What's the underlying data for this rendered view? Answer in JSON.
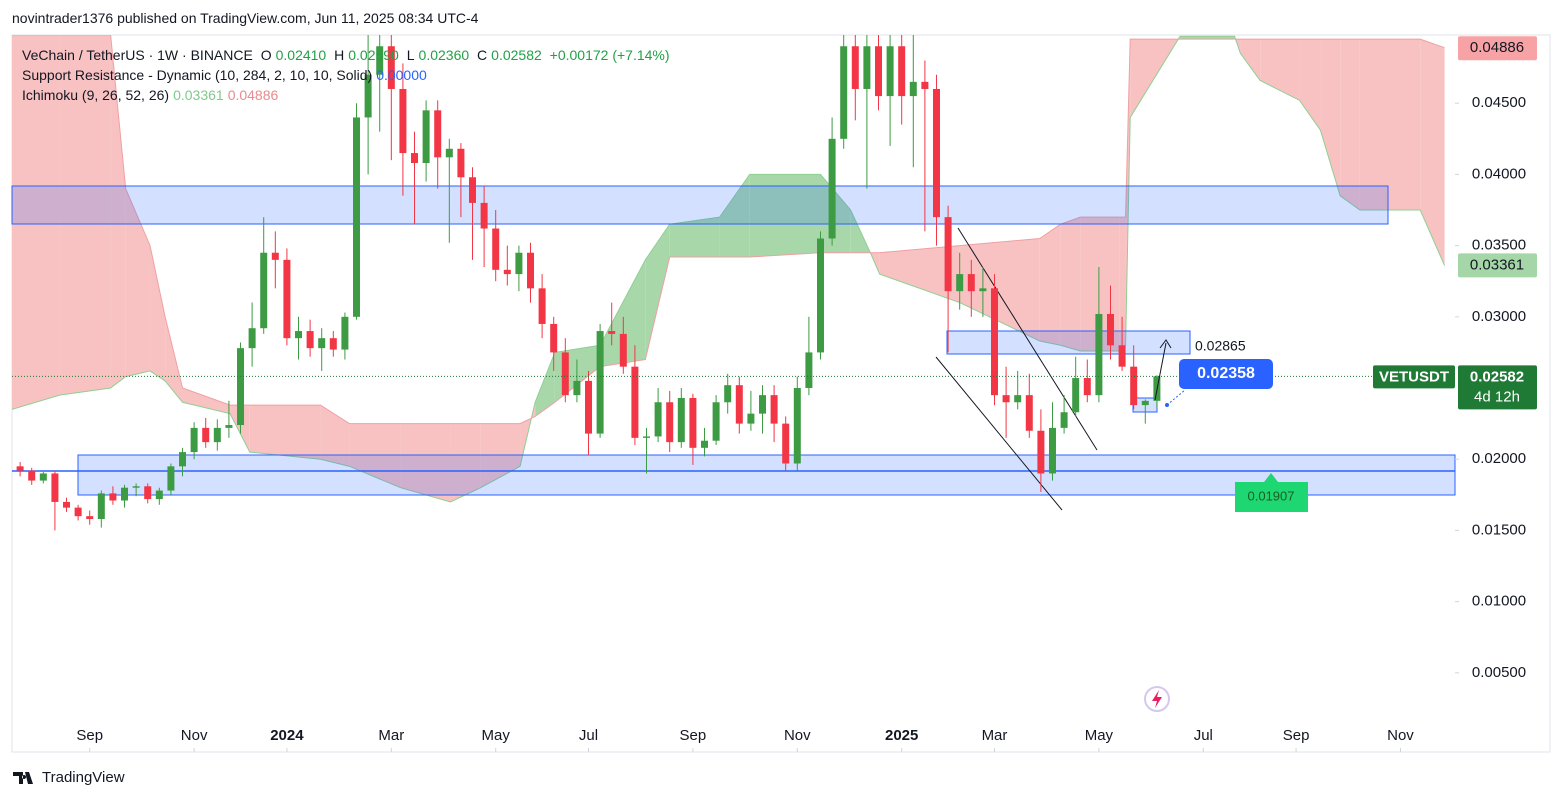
{
  "header": "novintrader1376 published on TradingView.com, Jun 11, 2025 08:34 UTC-4",
  "footer": "TradingView",
  "chart_data": {
    "type": "candlestick",
    "legend": {
      "symbol": "VeChain / TetherUS · 1W · BINANCE",
      "open_label": "O",
      "open": "0.02410",
      "high_label": "H",
      "high": "0.02590",
      "low_label": "L",
      "low": "0.02360",
      "close_label": "C",
      "close": "0.02582",
      "change": "+0.00172 (+7.14%)",
      "indicator_1": "Support Resistance - Dynamic (10, 284, 2, 10, 10, Solid)",
      "indicator_1_value": "0.00000",
      "indicator_2": "Ichimoku (9, 26, 52, 26)",
      "indicator_2_span_a": "0.03361",
      "indicator_2_span_b": "0.04886"
    },
    "up_color": "#3d9b43",
    "down_color": "#f23645",
    "open": [
      0.0195,
      0.0192,
      0.0185,
      0.019,
      0.017,
      0.0166,
      0.016,
      0.0158,
      0.0176,
      0.0171,
      0.018,
      0.0181,
      0.0172,
      0.0178,
      0.0195,
      0.0205,
      0.0222,
      0.0212,
      0.0222,
      0.0224,
      0.0278,
      0.0292,
      0.0345,
      0.034,
      0.0285,
      0.029,
      0.0278,
      0.0285,
      0.0277,
      0.03,
      0.044,
      0.047,
      0.049,
      0.046,
      0.0415,
      0.0408,
      0.0445,
      0.0412,
      0.0418,
      0.0398,
      0.038,
      0.0362,
      0.0333,
      0.033,
      0.0345,
      0.032,
      0.0295,
      0.0275,
      0.0245,
      0.0255,
      0.0218,
      0.029,
      0.0288,
      0.0265,
      0.0215,
      0.0216,
      0.024,
      0.0212,
      0.0243,
      0.0208,
      0.0213,
      0.024,
      0.0252,
      0.0225,
      0.0232,
      0.0245,
      0.0225,
      0.0197,
      0.025,
      0.0275,
      0.0355,
      0.0425,
      0.049,
      0.046,
      0.049,
      0.0455,
      0.049,
      0.0455,
      0.0465,
      0.046,
      0.037,
      0.0318,
      0.033,
      0.0318,
      0.032,
      0.0245,
      0.024,
      0.0245,
      0.022,
      0.019,
      0.0222,
      0.0233,
      0.0257,
      0.0245,
      0.0302,
      0.028,
      0.0265,
      0.0238,
      0.0241
    ],
    "high": [
      0.0198,
      0.0194,
      0.0191,
      0.0192,
      0.0173,
      0.0168,
      0.0164,
      0.0178,
      0.0181,
      0.0182,
      0.0183,
      0.0183,
      0.018,
      0.0197,
      0.0208,
      0.0226,
      0.0229,
      0.0228,
      0.0241,
      0.0282,
      0.031,
      0.037,
      0.036,
      0.0348,
      0.03,
      0.0298,
      0.0292,
      0.029,
      0.0303,
      0.045,
      0.0498,
      0.0498,
      0.0498,
      0.0478,
      0.043,
      0.0452,
      0.0452,
      0.0425,
      0.0422,
      0.0405,
      0.0392,
      0.0375,
      0.035,
      0.035,
      0.0352,
      0.033,
      0.03,
      0.0285,
      0.027,
      0.0262,
      0.0295,
      0.031,
      0.03,
      0.028,
      0.0222,
      0.025,
      0.0248,
      0.025,
      0.0246,
      0.0222,
      0.0245,
      0.026,
      0.0258,
      0.0248,
      0.0252,
      0.0252,
      0.023,
      0.0258,
      0.03,
      0.036,
      0.044,
      0.0498,
      0.0498,
      0.0498,
      0.0498,
      0.0498,
      0.0498,
      0.0498,
      0.048,
      0.047,
      0.0378,
      0.0345,
      0.034,
      0.0335,
      0.033,
      0.0265,
      0.0262,
      0.026,
      0.0235,
      0.024,
      0.0245,
      0.0272,
      0.027,
      0.0335,
      0.0322,
      0.03,
      0.028,
      0.0242,
      0.0259
    ],
    "low": [
      0.0188,
      0.0182,
      0.0183,
      0.015,
      0.0163,
      0.0157,
      0.0154,
      0.0152,
      0.0168,
      0.0166,
      0.0174,
      0.0169,
      0.0168,
      0.0175,
      0.0188,
      0.02,
      0.0208,
      0.0206,
      0.0215,
      0.0218,
      0.0265,
      0.0288,
      0.032,
      0.028,
      0.027,
      0.0272,
      0.0262,
      0.0272,
      0.027,
      0.0298,
      0.04,
      0.043,
      0.041,
      0.0385,
      0.0365,
      0.0395,
      0.039,
      0.0352,
      0.037,
      0.034,
      0.0335,
      0.0325,
      0.0322,
      0.0318,
      0.031,
      0.0285,
      0.0262,
      0.024,
      0.024,
      0.0203,
      0.0215,
      0.028,
      0.026,
      0.021,
      0.019,
      0.0212,
      0.0205,
      0.0208,
      0.0196,
      0.0202,
      0.021,
      0.0232,
      0.0218,
      0.022,
      0.0218,
      0.0212,
      0.0192,
      0.0192,
      0.0245,
      0.027,
      0.035,
      0.0418,
      0.0438,
      0.039,
      0.0445,
      0.042,
      0.0435,
      0.0405,
      0.036,
      0.035,
      0.0275,
      0.0305,
      0.03,
      0.03,
      0.0238,
      0.0215,
      0.0235,
      0.0215,
      0.0177,
      0.0185,
      0.0218,
      0.023,
      0.024,
      0.024,
      0.027,
      0.0262,
      0.0235,
      0.0225,
      0.0236
    ],
    "close": [
      0.0192,
      0.0185,
      0.019,
      0.017,
      0.0166,
      0.016,
      0.0158,
      0.0176,
      0.0171,
      0.018,
      0.0181,
      0.0172,
      0.0178,
      0.0195,
      0.0205,
      0.0222,
      0.0212,
      0.0222,
      0.0224,
      0.0278,
      0.0292,
      0.0345,
      0.034,
      0.0285,
      0.029,
      0.0278,
      0.0285,
      0.0277,
      0.03,
      0.044,
      0.047,
      0.049,
      0.046,
      0.0415,
      0.0408,
      0.0445,
      0.0412,
      0.0418,
      0.0398,
      0.038,
      0.0362,
      0.0333,
      0.033,
      0.0345,
      0.032,
      0.0295,
      0.0275,
      0.0245,
      0.0255,
      0.0218,
      0.029,
      0.0288,
      0.0265,
      0.0215,
      0.0216,
      0.024,
      0.0212,
      0.0243,
      0.0208,
      0.0213,
      0.024,
      0.0252,
      0.0225,
      0.0232,
      0.0245,
      0.0225,
      0.0197,
      0.025,
      0.0275,
      0.0355,
      0.0425,
      0.049,
      0.046,
      0.049,
      0.0455,
      0.049,
      0.0455,
      0.0465,
      0.046,
      0.037,
      0.0318,
      0.033,
      0.0318,
      0.032,
      0.0245,
      0.024,
      0.0245,
      0.022,
      0.019,
      0.0222,
      0.0233,
      0.0257,
      0.0245,
      0.0302,
      0.028,
      0.0265,
      0.0238,
      0.0241,
      0.02582
    ],
    "ichimoku": {
      "up_color": "#a8d8aa",
      "down_color": "#f8c2c2",
      "span_a_color": "#8fcf93",
      "span_b_color": "#efa0a4",
      "x": [
        -0.7,
        3.4,
        7.8,
        9.1,
        11.2,
        12.5,
        14.0,
        18.1,
        19.8,
        25.9,
        28.4,
        32.8,
        37.1,
        39.7,
        43.1,
        44.4,
        46.1,
        50.0,
        53.9,
        56.0,
        60.3,
        62.9,
        69.0,
        71.6,
        73.3,
        74.1,
        81.0,
        87.9,
        89.7,
        91.4,
        94.8,
        95.3,
        95.7,
        100.0,
        104.7,
        105.2,
        106.9,
        110.3,
        112.1,
        113.8,
        115.5,
        120.7,
        122.8
      ],
      "span_a": [
        0.0235,
        0.0245,
        0.025,
        0.0258,
        0.0262,
        0.0255,
        0.024,
        0.0232,
        0.0205,
        0.02,
        0.0195,
        0.018,
        0.017,
        0.018,
        0.0195,
        0.024,
        0.0275,
        0.028,
        0.034,
        0.0365,
        0.037,
        0.04,
        0.04,
        0.0375,
        0.0345,
        0.033,
        0.031,
        0.0283,
        0.028,
        0.0276,
        0.0276,
        0.028,
        0.044,
        0.0497,
        0.0497,
        0.0485,
        0.0466,
        0.0452,
        0.0431,
        0.0385,
        0.0375,
        0.0375,
        0.0336
      ],
      "span_b": [
        0.0498,
        0.0498,
        0.0498,
        0.039,
        0.035,
        0.03,
        0.025,
        0.0238,
        0.0238,
        0.0238,
        0.0225,
        0.0225,
        0.0225,
        0.0225,
        0.0225,
        0.023,
        0.024,
        0.0265,
        0.027,
        0.0342,
        0.0342,
        0.0342,
        0.0345,
        0.0345,
        0.0345,
        0.0345,
        0.035,
        0.0355,
        0.0365,
        0.037,
        0.037,
        0.037,
        0.0495,
        0.0495,
        0.0495,
        0.0495,
        0.0495,
        0.0495,
        0.0495,
        0.0495,
        0.0495,
        0.0495,
        0.0489
      ]
    },
    "xlim": [
      -0.7,
      123.7
    ],
    "xticks": [
      {
        "value": 6,
        "label": "Sep"
      },
      {
        "value": 15,
        "label": "Nov"
      },
      {
        "value": 23,
        "label": "2024"
      },
      {
        "value": 32,
        "label": "Mar"
      },
      {
        "value": 41,
        "label": "May"
      },
      {
        "value": 49,
        "label": "Jul"
      },
      {
        "value": 58,
        "label": "Sep"
      },
      {
        "value": 67,
        "label": "Nov"
      },
      {
        "value": 76,
        "label": "2025"
      },
      {
        "value": 84,
        "label": "Mar"
      },
      {
        "value": 93,
        "label": "May"
      },
      {
        "value": 102,
        "label": "Jul"
      },
      {
        "value": 110,
        "label": "Sep"
      },
      {
        "value": 119,
        "label": "Nov"
      }
    ],
    "ylim": [
      -0.00056,
      0.04979
    ],
    "yticks": [
      {
        "value": 0.005,
        "label": "0.00500"
      },
      {
        "value": 0.01,
        "label": "0.01000"
      },
      {
        "value": 0.015,
        "label": "0.01500"
      },
      {
        "value": 0.02,
        "label": "0.02000"
      },
      {
        "value": 0.03,
        "label": "0.03000"
      },
      {
        "value": 0.035,
        "label": "0.03500"
      },
      {
        "value": 0.04,
        "label": "0.04000"
      },
      {
        "value": 0.045,
        "label": "0.04500"
      }
    ],
    "price_badges": [
      {
        "value": 0.04886,
        "color": "#f7a3a6"
      },
      {
        "value": 0.03361,
        "color": "#a5d6a7"
      }
    ],
    "current": {
      "symbol": "VETUSDT",
      "value": 0.02582,
      "countdown": "4d 12h",
      "color": "#1f7a35"
    },
    "annotations": {
      "zone_top": "0.02865",
      "entry": "0.02358",
      "support": "0.01907"
    }
  }
}
